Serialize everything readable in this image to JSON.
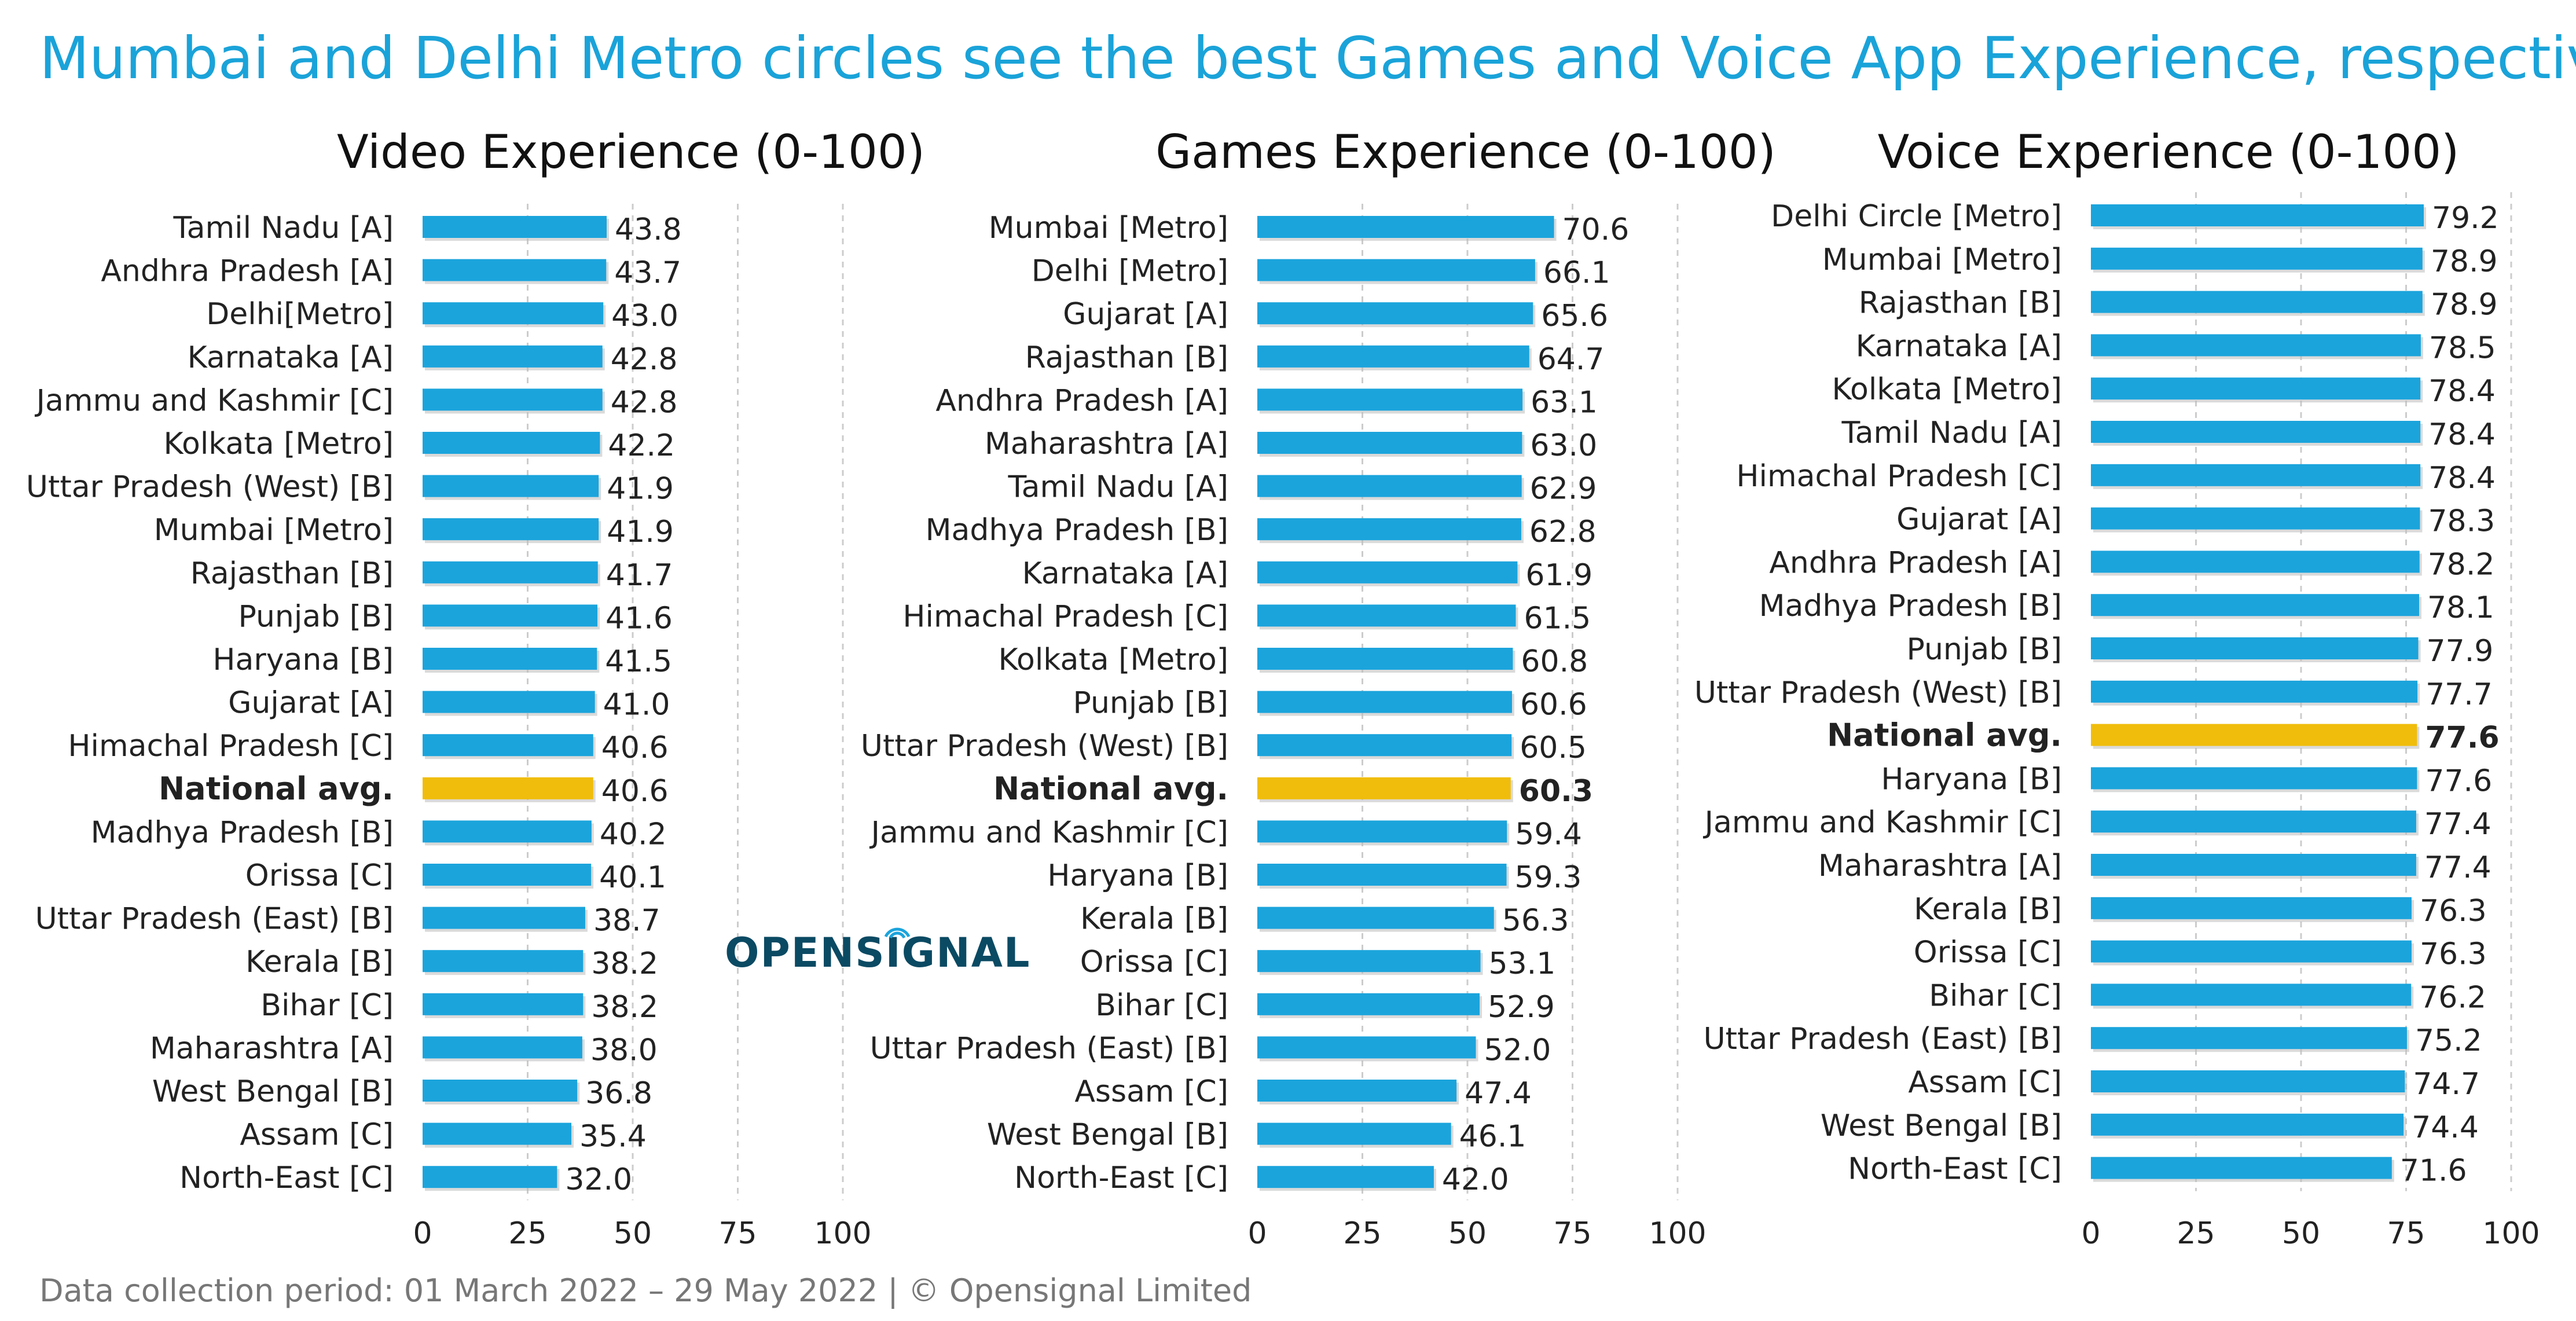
{
  "title": "Mumbai and Delhi Metro circles see the best Games and Voice App Experience, respectively",
  "footer": "Data collection period: 01 March 2022 – 29 May 2022  |  © Opensignal Limited",
  "logo": "OPENSIGNAL",
  "colors": {
    "bar": "#1ba4dc",
    "highlight": "#f0bd0c",
    "title": "#1aa3d9",
    "grid": "#cccccc"
  },
  "chart_data": [
    {
      "type": "bar",
      "orientation": "horizontal",
      "title": "Video Experience (0-100)",
      "xlim": [
        0,
        100
      ],
      "xticks": [
        0,
        25,
        50,
        75,
        100
      ],
      "highlight": "National avg.",
      "categories": [
        "Tamil Nadu [A]",
        "Andhra Pradesh [A]",
        "Delhi[Metro]",
        "Karnataka [A]",
        "Jammu and Kashmir [C]",
        "Kolkata [Metro]",
        "Uttar Pradesh (West) [B]",
        "Mumbai [Metro]",
        "Rajasthan [B]",
        "Punjab [B]",
        "Haryana [B]",
        "Gujarat [A]",
        "Himachal Pradesh [C]",
        "National avg.",
        "Madhya Pradesh [B]",
        "Orissa [C]",
        "Uttar Pradesh (East) [B]",
        "Kerala [B]",
        "Bihar [C]",
        "Maharashtra [A]",
        "West Bengal [B]",
        "Assam [C]",
        "North-East [C]"
      ],
      "values": [
        43.8,
        43.7,
        43.0,
        42.8,
        42.8,
        42.2,
        41.9,
        41.9,
        41.7,
        41.6,
        41.5,
        41.0,
        40.6,
        40.6,
        40.2,
        40.1,
        38.7,
        38.2,
        38.2,
        38.0,
        36.8,
        35.4,
        32.0
      ],
      "labels": [
        "43.8",
        "43.7",
        "43.0",
        "42.8",
        "42.8",
        "42.2",
        "41.9",
        "41.9",
        "41.7",
        "41.6",
        "41.5",
        "41.0",
        "40.6",
        "40.6",
        "40.2",
        "40.1",
        "38.7",
        "38.2",
        "38.2",
        "38.0",
        "36.8",
        "35.4",
        "32.0"
      ]
    },
    {
      "type": "bar",
      "orientation": "horizontal",
      "title": "Games Experience (0-100)",
      "xlim": [
        0,
        100
      ],
      "xticks": [
        0,
        25,
        50,
        75,
        100
      ],
      "highlight": "National avg.",
      "categories": [
        "Mumbai [Metro]",
        "Delhi [Metro]",
        "Gujarat [A]",
        "Rajasthan [B]",
        "Andhra Pradesh [A]",
        "Maharashtra [A]",
        "Tamil Nadu [A]",
        "Madhya Pradesh [B]",
        "Karnataka [A]",
        "Himachal Pradesh [C]",
        "Kolkata [Metro]",
        "Punjab [B]",
        "Uttar Pradesh (West) [B]",
        "National avg.",
        "Jammu and Kashmir [C]",
        "Haryana [B]",
        "Kerala [B]",
        "Orissa [C]",
        "Bihar [C]",
        "Uttar Pradesh (East) [B]",
        "Assam [C]",
        "West Bengal [B]",
        "North-East [C]"
      ],
      "values": [
        70.6,
        66.1,
        65.6,
        64.7,
        63.1,
        63.0,
        62.9,
        62.8,
        61.9,
        61.5,
        60.8,
        60.6,
        60.5,
        60.3,
        59.4,
        59.3,
        56.3,
        53.1,
        52.9,
        52.0,
        47.4,
        46.1,
        42.0
      ],
      "labels": [
        "70.6",
        "66.1",
        "65.6",
        "64.7",
        "63.1",
        "63.0",
        "62.9",
        "62.8",
        "61.9",
        "61.5",
        "60.8",
        "60.6",
        "60.5",
        "60.3",
        "59.4",
        "59.3",
        "56.3",
        "53.1",
        "52.9",
        "52.0",
        "47.4",
        "46.1",
        "42.0"
      ]
    },
    {
      "type": "bar",
      "orientation": "horizontal",
      "title": "Voice Experience (0-100)",
      "xlim": [
        0,
        100
      ],
      "xticks": [
        0,
        25,
        50,
        75,
        100
      ],
      "highlight": "National avg.",
      "categories": [
        "Delhi Circle [Metro]",
        "Mumbai [Metro]",
        "Rajasthan [B]",
        "Karnataka [A]",
        "Kolkata [Metro]",
        "Tamil Nadu [A]",
        "Himachal Pradesh [C]",
        "Gujarat [A]",
        "Andhra Pradesh [A]",
        "Madhya Pradesh [B]",
        "Punjab [B]",
        "Uttar Pradesh (West) [B]",
        "National avg.",
        "Haryana [B]",
        "Jammu and Kashmir [C]",
        "Maharashtra [A]",
        "Kerala [B]",
        "Orissa [C]",
        "Bihar [C]",
        "Uttar Pradesh (East) [B]",
        "Assam [C]",
        "West Bengal [B]",
        "North-East [C]"
      ],
      "values": [
        79.2,
        78.9,
        78.9,
        78.5,
        78.4,
        78.4,
        78.4,
        78.3,
        78.2,
        78.1,
        77.9,
        77.7,
        77.6,
        77.6,
        77.4,
        77.4,
        76.3,
        76.3,
        76.2,
        75.2,
        74.7,
        74.4,
        71.6
      ],
      "labels": [
        "79.2",
        "78.9",
        "78.9",
        "78.5",
        "78.4",
        "78.4",
        "78.4",
        "78.3",
        "78.2",
        "78.1",
        "77.9",
        "77.7",
        "77.6",
        "77.6",
        "77.4",
        "77.4",
        "76.3",
        "76.3",
        "76.2",
        "75.2",
        "74.7",
        "74.4",
        "71.6"
      ]
    }
  ]
}
